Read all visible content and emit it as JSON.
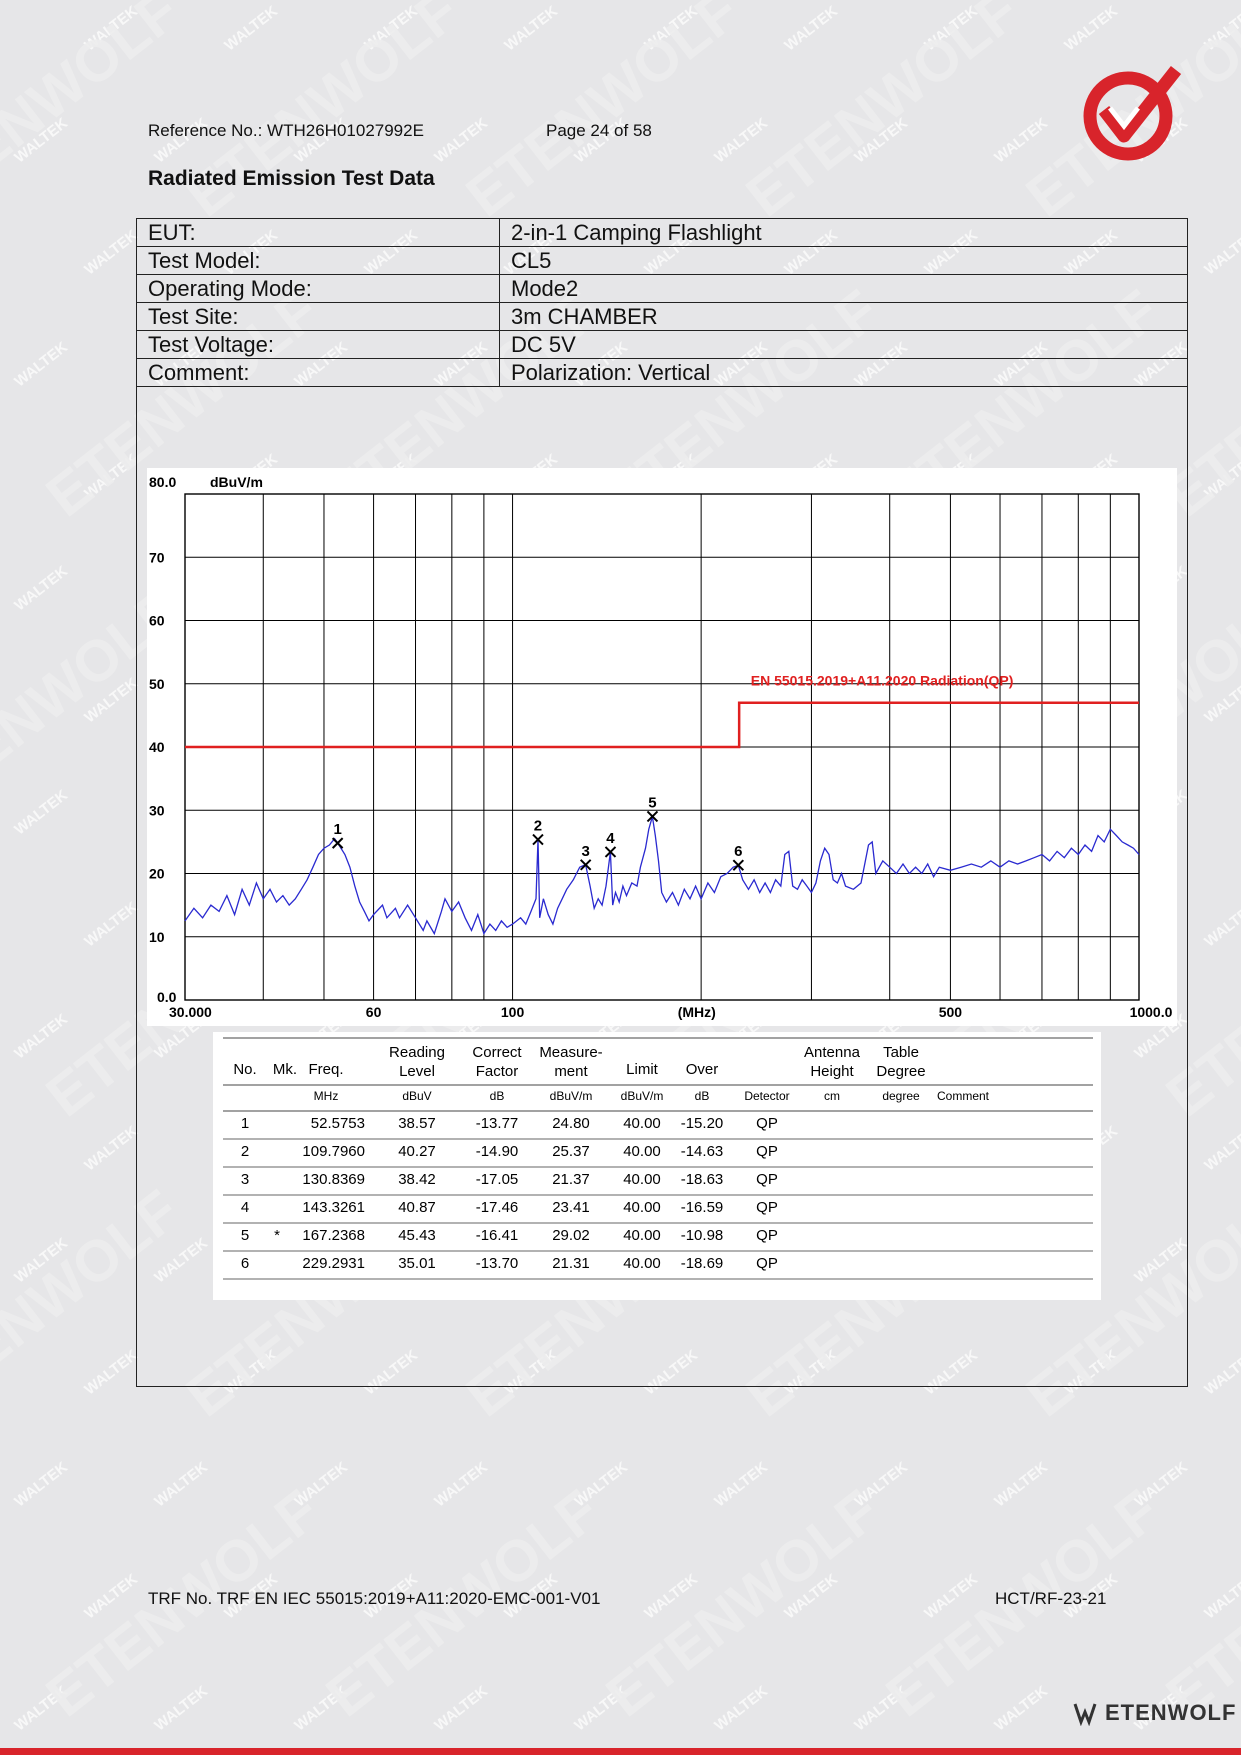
{
  "header": {
    "reference": "Reference No.: WTH26H01027992E",
    "page": "Page 24 of 58"
  },
  "section_title": "Radiated Emission Test Data",
  "info_rows": [
    {
      "label": "EUT:",
      "value": "2-in-1 Camping Flashlight"
    },
    {
      "label": "Test Model:",
      "value": "CL5"
    },
    {
      "label": "Operating Mode:",
      "value": "Mode2"
    },
    {
      "label": "Test Site:",
      "value": "3m CHAMBER"
    },
    {
      "label": "Test Voltage:",
      "value": "DC 5V"
    },
    {
      "label": "Comment:",
      "value": "Polarization: Vertical"
    }
  ],
  "chart_data": {
    "type": "line",
    "ylabel": "dBuV/m",
    "xlabel": "(MHz)",
    "x_scale": "log",
    "xlim": [
      30,
      1000
    ],
    "ylim": [
      0,
      80
    ],
    "y_ticks": [
      {
        "value": 80,
        "label": "80.0"
      },
      {
        "value": 70,
        "label": "70"
      },
      {
        "value": 60,
        "label": "60"
      },
      {
        "value": 50,
        "label": "50"
      },
      {
        "value": 40,
        "label": "40"
      },
      {
        "value": 30,
        "label": "30"
      },
      {
        "value": 20,
        "label": "20"
      },
      {
        "value": 10,
        "label": "10"
      },
      {
        "value": 0,
        "label": "0.0"
      }
    ],
    "x_ticks": [
      {
        "value": 30,
        "label": "30.000"
      },
      {
        "value": 60,
        "label": "60"
      },
      {
        "value": 100,
        "label": "100"
      },
      {
        "value": 500,
        "label": "500"
      },
      {
        "value": 1000,
        "label": "1000.0"
      }
    ],
    "x_gridlines": [
      30,
      40,
      50,
      60,
      70,
      80,
      90,
      100,
      200,
      300,
      400,
      500,
      600,
      700,
      800,
      900,
      1000
    ],
    "grid": true,
    "limit_line": {
      "name": "EN 55015.2019+A11.2020 Radiation(QP)",
      "color": "#e02020",
      "points": [
        [
          30,
          40
        ],
        [
          230,
          40
        ],
        [
          230,
          47
        ],
        [
          1000,
          47
        ]
      ]
    },
    "trace": {
      "color": "#2a2ad0",
      "points": [
        [
          30,
          12.5
        ],
        [
          31,
          14.5
        ],
        [
          32,
          13
        ],
        [
          33,
          15
        ],
        [
          34,
          14
        ],
        [
          35,
          16.5
        ],
        [
          36,
          13.5
        ],
        [
          37,
          17.5
        ],
        [
          38,
          15
        ],
        [
          39,
          18.5
        ],
        [
          40,
          16
        ],
        [
          41,
          17.5
        ],
        [
          42,
          15.5
        ],
        [
          43,
          16.5
        ],
        [
          44,
          15
        ],
        [
          45,
          16
        ],
        [
          46,
          17.5
        ],
        [
          47,
          19
        ],
        [
          48,
          21
        ],
        [
          49,
          23
        ],
        [
          50,
          24
        ],
        [
          51,
          24.5
        ],
        [
          52,
          25.5
        ],
        [
          52.6,
          24.8
        ],
        [
          54,
          23
        ],
        [
          55,
          21
        ],
        [
          56,
          18
        ],
        [
          57,
          15.5
        ],
        [
          58,
          14
        ],
        [
          59,
          12.5
        ],
        [
          60,
          13.5
        ],
        [
          62,
          15
        ],
        [
          63,
          13
        ],
        [
          65,
          14.5
        ],
        [
          66,
          13
        ],
        [
          68,
          15
        ],
        [
          70,
          13
        ],
        [
          72,
          11
        ],
        [
          73,
          12.5
        ],
        [
          75,
          10.5
        ],
        [
          77,
          14
        ],
        [
          78,
          16
        ],
        [
          80,
          14
        ],
        [
          82,
          15.5
        ],
        [
          84,
          13
        ],
        [
          86,
          11
        ],
        [
          88,
          13.5
        ],
        [
          90,
          10.5
        ],
        [
          92,
          12
        ],
        [
          94,
          11
        ],
        [
          96,
          12.5
        ],
        [
          98,
          11.5
        ],
        [
          100,
          12
        ],
        [
          103,
          13
        ],
        [
          105,
          12
        ],
        [
          107,
          14
        ],
        [
          109,
          16
        ],
        [
          109.8,
          25.4
        ],
        [
          110.5,
          13
        ],
        [
          112,
          16
        ],
        [
          114,
          13.5
        ],
        [
          116,
          12
        ],
        [
          118,
          14.5
        ],
        [
          120,
          16
        ],
        [
          122,
          17.5
        ],
        [
          125,
          19
        ],
        [
          128,
          21
        ],
        [
          130.8,
          21.4
        ],
        [
          133,
          18
        ],
        [
          135,
          14.5
        ],
        [
          137,
          16
        ],
        [
          139,
          15
        ],
        [
          141,
          18
        ],
        [
          143.3,
          23.4
        ],
        [
          144.5,
          15
        ],
        [
          146,
          17
        ],
        [
          148,
          15.5
        ],
        [
          150,
          18
        ],
        [
          152,
          16.5
        ],
        [
          155,
          18.5
        ],
        [
          158,
          18
        ],
        [
          160,
          21
        ],
        [
          163,
          24
        ],
        [
          165,
          27
        ],
        [
          167.2,
          29.0
        ],
        [
          169,
          26
        ],
        [
          171,
          22
        ],
        [
          173,
          17
        ],
        [
          176,
          15.5
        ],
        [
          180,
          17
        ],
        [
          184,
          15
        ],
        [
          188,
          17.5
        ],
        [
          192,
          16
        ],
        [
          196,
          18
        ],
        [
          200,
          16
        ],
        [
          205,
          18.5
        ],
        [
          210,
          17
        ],
        [
          215,
          19.5
        ],
        [
          220,
          20
        ],
        [
          225,
          21
        ],
        [
          229.3,
          21.3
        ],
        [
          233,
          19
        ],
        [
          238,
          17.5
        ],
        [
          243,
          19
        ],
        [
          248,
          17
        ],
        [
          253,
          18.5
        ],
        [
          258,
          17
        ],
        [
          263,
          19
        ],
        [
          268,
          18
        ],
        [
          272,
          23
        ],
        [
          276,
          23.5
        ],
        [
          280,
          18
        ],
        [
          285,
          17.5
        ],
        [
          290,
          19
        ],
        [
          295,
          18
        ],
        [
          300,
          17
        ],
        [
          305,
          18.5
        ],
        [
          310,
          22
        ],
        [
          315,
          24
        ],
        [
          320,
          23
        ],
        [
          325,
          19
        ],
        [
          330,
          18.5
        ],
        [
          335,
          20
        ],
        [
          340,
          18
        ],
        [
          350,
          17.5
        ],
        [
          360,
          18.5
        ],
        [
          370,
          24.5
        ],
        [
          375,
          25
        ],
        [
          380,
          20
        ],
        [
          390,
          22
        ],
        [
          400,
          21
        ],
        [
          410,
          20
        ],
        [
          420,
          21.5
        ],
        [
          430,
          20
        ],
        [
          440,
          21
        ],
        [
          450,
          20
        ],
        [
          460,
          21.5
        ],
        [
          470,
          19.5
        ],
        [
          480,
          21
        ],
        [
          500,
          20.5
        ],
        [
          520,
          21
        ],
        [
          540,
          21.5
        ],
        [
          560,
          21
        ],
        [
          580,
          22
        ],
        [
          600,
          21
        ],
        [
          620,
          22
        ],
        [
          640,
          21.5
        ],
        [
          660,
          22
        ],
        [
          680,
          22.5
        ],
        [
          700,
          23
        ],
        [
          720,
          22
        ],
        [
          740,
          23.5
        ],
        [
          760,
          22.5
        ],
        [
          780,
          24
        ],
        [
          800,
          23
        ],
        [
          820,
          24.5
        ],
        [
          840,
          23.5
        ],
        [
          860,
          26
        ],
        [
          880,
          25
        ],
        [
          900,
          27
        ],
        [
          920,
          26
        ],
        [
          940,
          25
        ],
        [
          960,
          24.5
        ],
        [
          980,
          24
        ],
        [
          1000,
          23
        ]
      ]
    },
    "markers": [
      {
        "label": "1",
        "freq": 52.5753,
        "level": 24.8
      },
      {
        "label": "2",
        "freq": 109.796,
        "level": 25.37
      },
      {
        "label": "3",
        "freq": 130.8369,
        "level": 21.37
      },
      {
        "label": "4",
        "freq": 143.3261,
        "level": 23.41
      },
      {
        "label": "5",
        "freq": 167.2368,
        "level": 29.02
      },
      {
        "label": "6",
        "freq": 229.2931,
        "level": 21.31
      }
    ]
  },
  "measurement_table": {
    "headers": [
      [
        "No.",
        ""
      ],
      [
        "Mk.",
        ""
      ],
      [
        "Freq.",
        ""
      ],
      [
        "Reading",
        "Level"
      ],
      [
        "Correct",
        "Factor"
      ],
      [
        "Measure-",
        "ment"
      ],
      [
        "Limit",
        ""
      ],
      [
        "Over",
        ""
      ],
      [
        "",
        ""
      ],
      [
        "Antenna",
        "Height"
      ],
      [
        "Table",
        "Degree"
      ],
      [
        "",
        ""
      ]
    ],
    "units": [
      "",
      "",
      "MHz",
      "dBuV",
      "dB",
      "dBuV/m",
      "dBuV/m",
      "dB",
      "Detector",
      "cm",
      "degree",
      "Comment"
    ],
    "rows": [
      [
        "1",
        "",
        "52.5753",
        "38.57",
        "-13.77",
        "24.80",
        "40.00",
        "-15.20",
        "QP",
        "",
        "",
        ""
      ],
      [
        "2",
        "",
        "109.7960",
        "40.27",
        "-14.90",
        "25.37",
        "40.00",
        "-14.63",
        "QP",
        "",
        "",
        ""
      ],
      [
        "3",
        "",
        "130.8369",
        "38.42",
        "-17.05",
        "21.37",
        "40.00",
        "-18.63",
        "QP",
        "",
        "",
        ""
      ],
      [
        "4",
        "",
        "143.3261",
        "40.87",
        "-17.46",
        "23.41",
        "40.00",
        "-16.59",
        "QP",
        "",
        "",
        ""
      ],
      [
        "5",
        "*",
        "167.2368",
        "45.43",
        "-16.41",
        "29.02",
        "40.00",
        "-10.98",
        "QP",
        "",
        "",
        ""
      ],
      [
        "6",
        "",
        "229.2931",
        "35.01",
        "-13.70",
        "21.31",
        "40.00",
        "-18.69",
        "QP",
        "",
        "",
        ""
      ]
    ]
  },
  "footer": {
    "trf": "TRF No. TRF EN IEC 55015:2019+A11:2020-EMC-001-V01",
    "code": "HCT/RF-23-21"
  },
  "brand": {
    "name": "ETENWOLF"
  },
  "watermark": [
    "WALTEK",
    "ETENWOLF"
  ]
}
